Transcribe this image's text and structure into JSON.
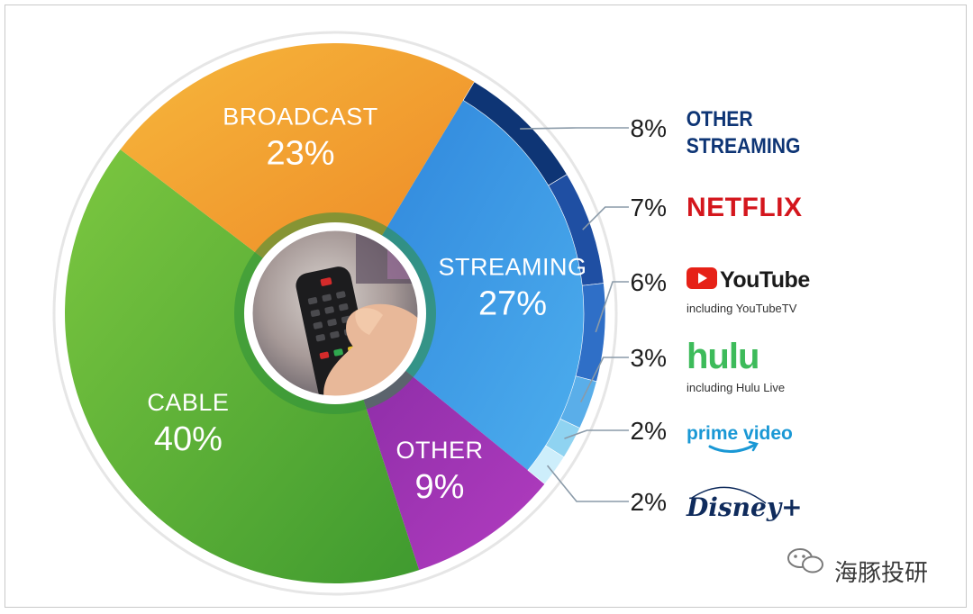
{
  "chart_data": {
    "type": "pie",
    "style": "donut",
    "segments": [
      {
        "label": "STREAMING",
        "value": 27,
        "pct_label": "27%",
        "color": "#3e9de6"
      },
      {
        "label": "OTHER",
        "value": 9,
        "pct_label": "9%",
        "color": "#a238b7"
      },
      {
        "label": "CABLE",
        "value": 40,
        "pct_label": "40%",
        "color": "#5fb73a"
      },
      {
        "label": "BROADCAST",
        "value": 23,
        "pct_label": "23%",
        "color": "#f29a2e"
      }
    ],
    "streaming_breakdown": [
      {
        "label": "OTHER STREAMING",
        "lines": [
          "OTHER",
          "STREAMING"
        ],
        "value": 8,
        "pct_label": "8%",
        "color": "#0e3575",
        "text_color": "#0e3575"
      },
      {
        "label": "NETFLIX",
        "lines": [
          "NETFLIX"
        ],
        "value": 7,
        "pct_label": "7%",
        "color": "#1f4fa3",
        "text_color": "#d4161d"
      },
      {
        "label": "YouTube",
        "lines": [
          "YouTube"
        ],
        "sub": "including YouTubeTV",
        "value": 6,
        "pct_label": "6%",
        "color": "#2f6fc7",
        "text_color": "#1a1a1a"
      },
      {
        "label": "hulu",
        "lines": [
          "hulu"
        ],
        "sub": "including Hulu Live",
        "value": 3,
        "pct_label": "3%",
        "color": "#5aaee9",
        "text_color": "#3dbb5a"
      },
      {
        "label": "prime video",
        "lines": [
          "prime video"
        ],
        "value": 2,
        "pct_label": "2%",
        "color": "#8fd3f1",
        "text_color": "#1a98d5"
      },
      {
        "label": "Disney+",
        "lines": [
          "Disney+"
        ],
        "value": 2,
        "pct_label": "2%",
        "color": "#cdeefb",
        "text_color": "#0f2b5c"
      }
    ]
  },
  "watermark": {
    "text": "海豚投研"
  },
  "icons": {
    "center_image": "tv-remote-photo",
    "youtube_logo": "youtube-play-icon",
    "prime_smile": "amazon-smile-icon",
    "watermark_icon": "wechat-icon"
  }
}
